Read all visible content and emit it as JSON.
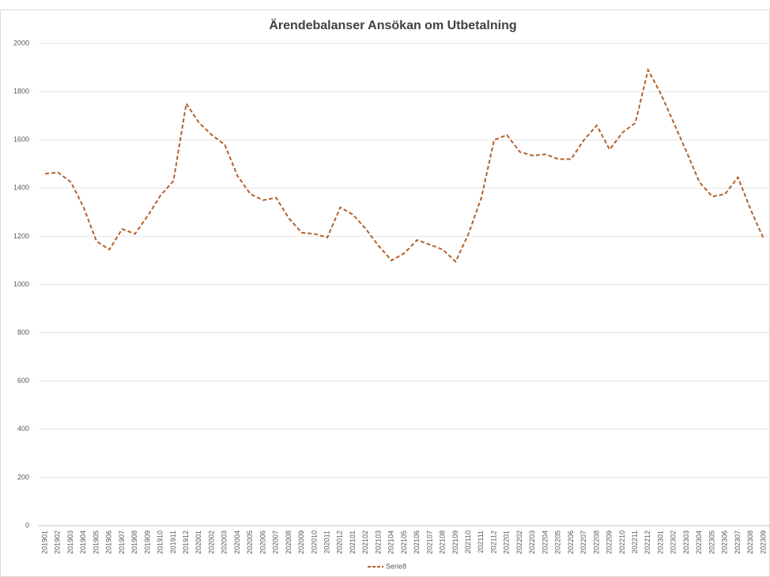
{
  "chart_data": {
    "type": "line",
    "title": "Ärendebalanser Ansökan om Utbetalning",
    "categories": [
      "201901",
      "201902",
      "201903",
      "201904",
      "201905",
      "201906",
      "201907",
      "201908",
      "201909",
      "201910",
      "201911",
      "201912",
      "202001",
      "202002",
      "202003",
      "202004",
      "202005",
      "202006",
      "202007",
      "202008",
      "202009",
      "202010",
      "202011",
      "202012",
      "202101",
      "202102",
      "202103",
      "202104",
      "202105",
      "202106",
      "202107",
      "202108",
      "202109",
      "202110",
      "202111",
      "202112",
      "202201",
      "202202",
      "202203",
      "202204",
      "202205",
      "202206",
      "202207",
      "202208",
      "202209",
      "202210",
      "202211",
      "202212",
      "202301",
      "202302",
      "202303",
      "202304",
      "202305",
      "202306",
      "202307",
      "202308",
      "202309"
    ],
    "series": [
      {
        "name": "Serie8",
        "color": "#b4602a",
        "values": [
          1460,
          1465,
          1425,
          1320,
          1180,
          1145,
          1230,
          1210,
          1285,
          1370,
          1430,
          1750,
          1670,
          1620,
          1580,
          1450,
          1375,
          1350,
          1360,
          1275,
          1215,
          1210,
          1195,
          1320,
          1290,
          1230,
          1160,
          1100,
          1130,
          1185,
          1165,
          1145,
          1095,
          1210,
          1360,
          1600,
          1620,
          1550,
          1535,
          1540,
          1520,
          1520,
          1600,
          1660,
          1560,
          1630,
          1670,
          1890,
          1790,
          1670,
          1550,
          1425,
          1365,
          1375,
          1445,
          1310,
          1190
        ]
      }
    ],
    "ylim": [
      0,
      2000
    ],
    "yticks": [
      0,
      200,
      400,
      600,
      800,
      1000,
      1200,
      1400,
      1600,
      1800,
      2000
    ],
    "grid": true,
    "legend": "bottom"
  }
}
